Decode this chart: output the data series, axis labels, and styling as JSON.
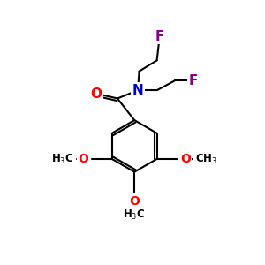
{
  "background_color": "#ffffff",
  "atom_colors": {
    "O": "#ff0000",
    "N": "#0000cc",
    "F": "#880088",
    "C": "#000000",
    "H": "#000000"
  },
  "bond_color": "#000000",
  "lw": 1.5
}
